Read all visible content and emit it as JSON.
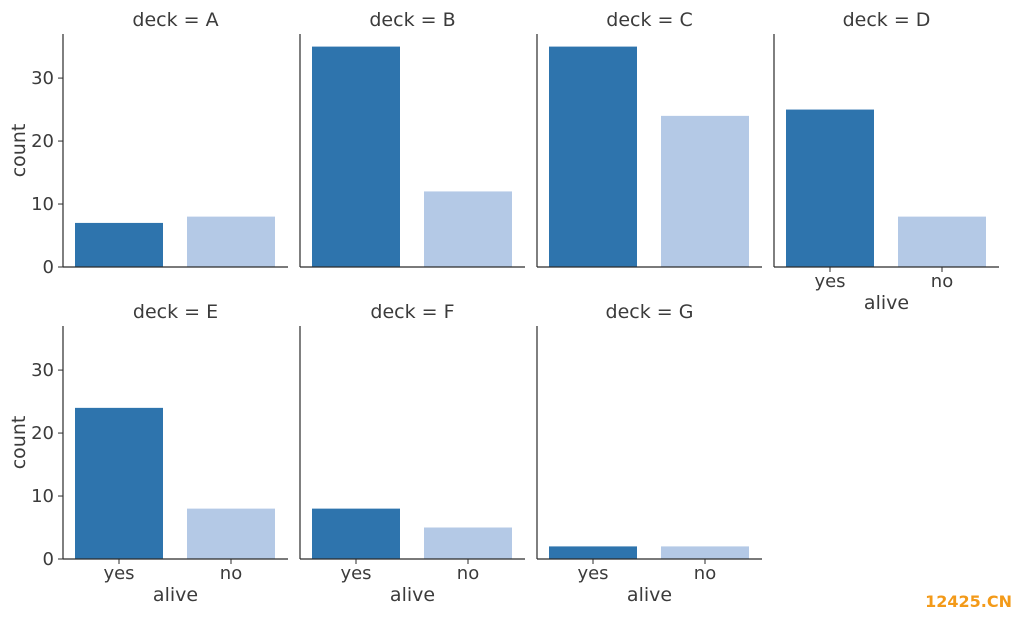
{
  "chart_data": {
    "type": "bar",
    "facet_variable": "deck",
    "categories": [
      "yes",
      "no"
    ],
    "xlabel": "alive",
    "ylabel": "count",
    "ylim": [
      0,
      37
    ],
    "yticks": [
      0,
      10,
      20,
      30
    ],
    "colors": {
      "yes": "#2e74ad",
      "no": "#b4c9e6"
    },
    "panels": [
      {
        "title": "deck = A",
        "values": [
          7,
          8
        ]
      },
      {
        "title": "deck = B",
        "values": [
          35,
          12
        ]
      },
      {
        "title": "deck = C",
        "values": [
          35,
          24
        ]
      },
      {
        "title": "deck = D",
        "values": [
          25,
          8
        ]
      },
      {
        "title": "deck = E",
        "values": [
          24,
          8
        ]
      },
      {
        "title": "deck = F",
        "values": [
          8,
          5
        ]
      },
      {
        "title": "deck = G",
        "values": [
          2,
          2
        ]
      }
    ]
  },
  "watermark": "12425.CN"
}
